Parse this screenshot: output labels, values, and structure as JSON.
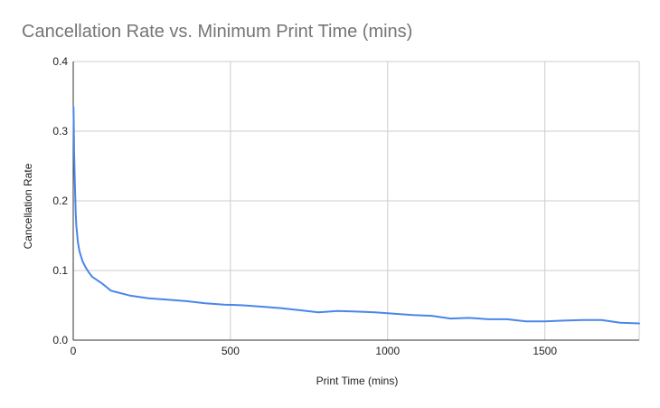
{
  "chart_data": {
    "type": "line",
    "title": "Cancellation Rate vs. Minimum Print Time (mins)",
    "xlabel": "Print Time (mins)",
    "ylabel": "Cancellation Rate",
    "xlim": [
      0,
      1800
    ],
    "ylim": [
      0,
      0.4
    ],
    "xticks": [
      0,
      500,
      1000,
      1500
    ],
    "xtick_labels": [
      "0",
      "500",
      "1000",
      "1500"
    ],
    "yticks": [
      0,
      0.1,
      0.2,
      0.3,
      0.4
    ],
    "ytick_labels": [
      "0.0",
      "0.1",
      "0.2",
      "0.3",
      "0.4"
    ],
    "grid": true,
    "legend": "none",
    "series": [
      {
        "color": "#4a86e8",
        "x": [
          1,
          3,
          5,
          8,
          10,
          15,
          20,
          30,
          40,
          50,
          60,
          90,
          120,
          180,
          240,
          300,
          360,
          420,
          480,
          540,
          600,
          660,
          720,
          780,
          840,
          900,
          960,
          1020,
          1080,
          1140,
          1200,
          1260,
          1320,
          1380,
          1440,
          1500,
          1560,
          1620,
          1680,
          1740,
          1800
        ],
        "y": [
          0.335,
          0.27,
          0.23,
          0.18,
          0.163,
          0.14,
          0.127,
          0.113,
          0.104,
          0.097,
          0.091,
          0.082,
          0.071,
          0.064,
          0.06,
          0.058,
          0.056,
          0.053,
          0.051,
          0.05,
          0.048,
          0.046,
          0.043,
          0.04,
          0.042,
          0.041,
          0.04,
          0.038,
          0.036,
          0.035,
          0.031,
          0.032,
          0.03,
          0.03,
          0.027,
          0.027,
          0.028,
          0.029,
          0.029,
          0.025,
          0.024
        ]
      }
    ]
  },
  "colors": {
    "line": "#4a86e8",
    "grid": "#cccccc",
    "axis": "#333333",
    "title": "#757575",
    "text": "#222222"
  }
}
